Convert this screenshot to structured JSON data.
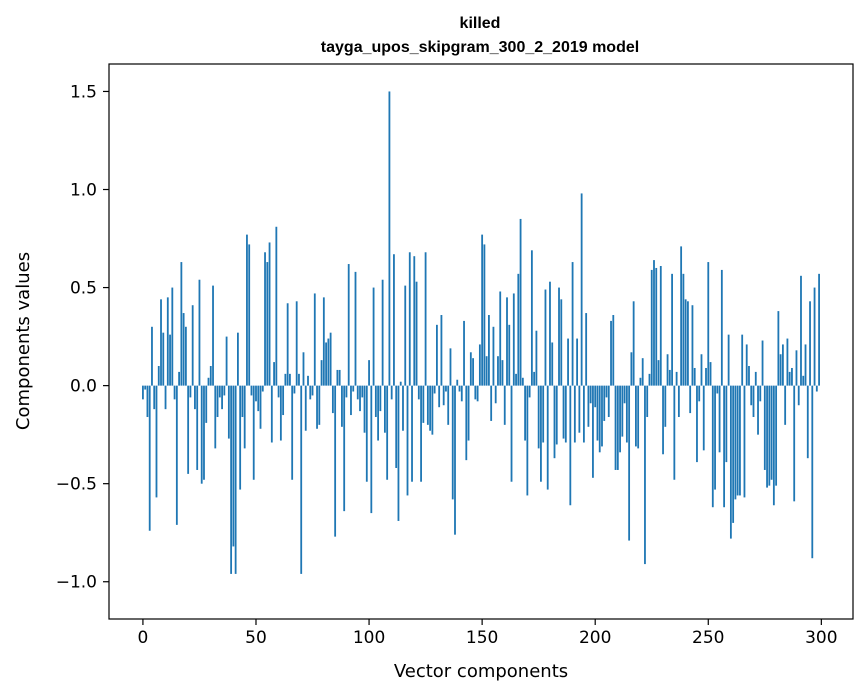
{
  "chart_data": {
    "type": "bar",
    "title": "killed",
    "subtitle": "tayga_upos_skipgram_300_2_2019 model",
    "xlabel": "Vector components",
    "ylabel": "Components values",
    "xlim": [
      -15,
      314
    ],
    "ylim": [
      -1.19,
      1.64
    ],
    "xticks": [
      0,
      50,
      100,
      150,
      200,
      250,
      300
    ],
    "yticks": [
      -1.0,
      -0.5,
      0.0,
      0.5,
      1.0,
      1.5
    ],
    "ytick_labels": [
      "−1.0",
      "−0.5",
      "0.0",
      "0.5",
      "1.0",
      "1.5"
    ],
    "color": "#1f77b4",
    "values": [
      -0.07,
      -0.02,
      -0.16,
      -0.74,
      0.3,
      -0.12,
      -0.57,
      0.1,
      0.44,
      0.27,
      -0.12,
      0.45,
      0.26,
      0.5,
      -0.07,
      -0.71,
      0.07,
      0.63,
      0.37,
      0.3,
      -0.45,
      -0.06,
      0.41,
      -0.12,
      -0.43,
      0.54,
      -0.5,
      -0.48,
      -0.19,
      0.04,
      0.1,
      0.51,
      -0.32,
      -0.16,
      -0.06,
      -0.12,
      -0.05,
      0.25,
      -0.27,
      -0.96,
      -0.82,
      -0.96,
      0.27,
      -0.53,
      -0.16,
      -0.32,
      0.77,
      0.72,
      -0.05,
      -0.48,
      -0.08,
      -0.13,
      -0.22,
      -0.03,
      0.68,
      0.63,
      0.73,
      -0.29,
      0.12,
      0.81,
      -0.06,
      -0.28,
      -0.15,
      0.06,
      0.42,
      0.06,
      -0.48,
      -0.04,
      0.43,
      0.06,
      -0.96,
      0.17,
      -0.23,
      0.05,
      -0.07,
      -0.05,
      0.47,
      -0.22,
      -0.2,
      0.13,
      0.45,
      0.22,
      0.24,
      0.27,
      -0.14,
      -0.77,
      0.08,
      0.08,
      -0.21,
      -0.64,
      -0.06,
      0.62,
      -0.15,
      -0.03,
      0.58,
      -0.07,
      -0.13,
      -0.06,
      -0.24,
      -0.49,
      0.13,
      -0.65,
      0.5,
      -0.16,
      -0.28,
      -0.13,
      0.54,
      -0.24,
      -0.48,
      1.5,
      -0.07,
      0.67,
      -0.42,
      -0.69,
      0.02,
      -0.23,
      0.51,
      -0.56,
      0.68,
      -0.49,
      0.66,
      0.53,
      -0.07,
      -0.49,
      -0.19,
      0.68,
      -0.2,
      -0.23,
      -0.25,
      -0.04,
      0.31,
      -0.11,
      0.36,
      -0.1,
      -0.03,
      -0.2,
      0.19,
      -0.58,
      -0.76,
      0.03,
      -0.03,
      -0.08,
      0.33,
      -0.38,
      -0.28,
      0.17,
      0.14,
      -0.07,
      -0.08,
      0.21,
      0.77,
      0.72,
      0.15,
      0.36,
      -0.18,
      0.3,
      -0.09,
      0.15,
      0.48,
      0.13,
      -0.2,
      0.45,
      0.31,
      -0.49,
      0.47,
      0.06,
      0.57,
      0.85,
      0.04,
      -0.28,
      -0.56,
      -0.06,
      0.69,
      0.07,
      0.28,
      -0.32,
      -0.49,
      -0.29,
      0.49,
      -0.53,
      0.53,
      0.22,
      -0.37,
      -0.3,
      0.5,
      0.44,
      -0.27,
      -0.29,
      0.24,
      -0.61,
      0.63,
      -0.29,
      0.24,
      -0.24,
      0.98,
      -0.29,
      0.37,
      -0.21,
      -0.09,
      -0.47,
      -0.11,
      -0.28,
      -0.34,
      -0.31,
      -0.18,
      -0.06,
      -0.16,
      0.33,
      0.36,
      -0.43,
      -0.43,
      -0.34,
      -0.26,
      -0.09,
      -0.29,
      -0.79,
      0.17,
      0.43,
      -0.31,
      -0.32,
      0.04,
      0.14,
      -0.91,
      -0.16,
      0.06,
      0.59,
      0.64,
      0.6,
      0.13,
      0.61,
      -0.35,
      -0.21,
      0.16,
      0.08,
      0.57,
      -0.48,
      0.07,
      -0.16,
      0.71,
      0.57,
      0.44,
      0.43,
      -0.14,
      0.41,
      0.09,
      -0.39,
      -0.08,
      0.16,
      -0.33,
      0.09,
      0.63,
      0.12,
      -0.62,
      -0.53,
      -0.04,
      -0.34,
      0.59,
      -0.62,
      -0.39,
      0.26,
      -0.78,
      -0.7,
      -0.58,
      -0.56,
      -0.56,
      0.26,
      -0.57,
      0.21,
      0.1,
      -0.1,
      -0.16,
      0.07,
      -0.25,
      -0.08,
      0.23,
      -0.43,
      -0.52,
      -0.51,
      -0.48,
      -0.61,
      -0.51,
      0.38,
      0.16,
      0.21,
      -0.2,
      0.24,
      0.07,
      0.09,
      -0.59,
      0.18,
      -0.1,
      0.56,
      0.05,
      0.21,
      -0.37,
      0.43,
      -0.88,
      0.5,
      -0.03,
      0.57
    ]
  }
}
